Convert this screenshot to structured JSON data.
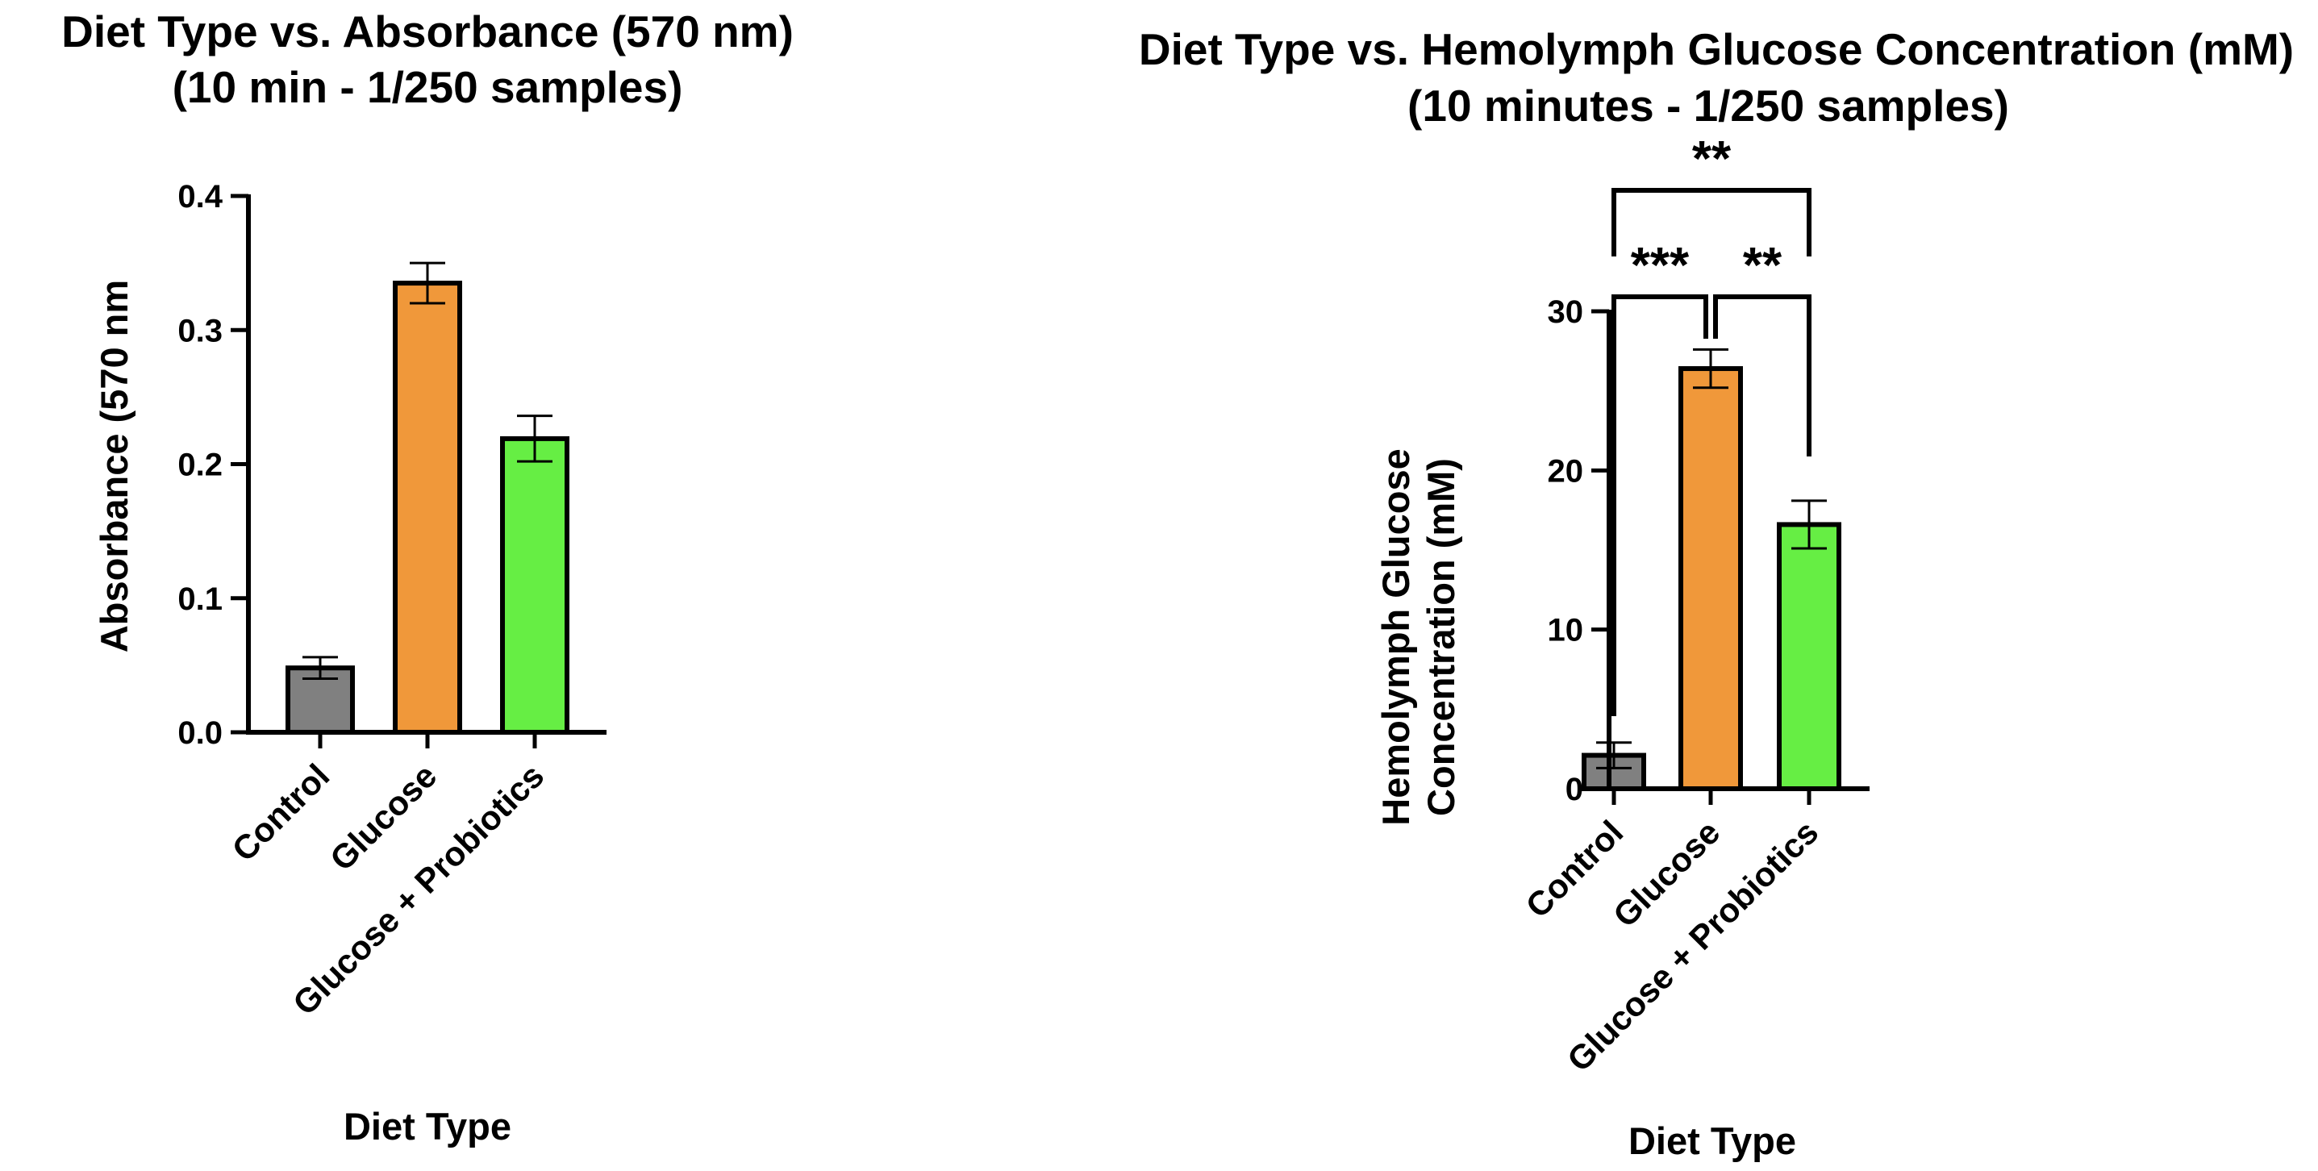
{
  "chart_data": [
    {
      "type": "bar",
      "title_line1": "Diet Type vs. Absorbance (570 nm)",
      "title_line2": "(10 min - 1/250 samples)",
      "xlabel": "Diet Type",
      "ylabel": "Absorbance (570 nm",
      "categories": [
        "Control",
        "Glucose",
        "Glucose + Probiotics"
      ],
      "values": [
        0.048,
        0.335,
        0.219
      ],
      "errors": [
        0.008,
        0.015,
        0.017
      ],
      "colors": [
        "#808080",
        "#F0983A",
        "#66EE44"
      ],
      "ylim": [
        0,
        0.4
      ],
      "yticks": [
        "0.0",
        "0.1",
        "0.2",
        "0.3",
        "0.4"
      ],
      "significance": [],
      "grid": false,
      "legend": "none"
    },
    {
      "type": "bar",
      "title_line1": "Diet Type vs. Hemolymph Glucose Concentration (mM)",
      "title_line2": "(10 minutes - 1/250 samples)",
      "xlabel": "Diet Type",
      "ylabel_line1": "Hemolymph Glucose",
      "ylabel_line2": "Concentration (mM)",
      "categories": [
        "Control",
        "Glucose",
        "Glucose + Probiotics"
      ],
      "values": [
        2.1,
        26.4,
        16.6
      ],
      "errors": [
        0.8,
        1.2,
        1.5
      ],
      "colors": [
        "#808080",
        "#F0983A",
        "#66EE44"
      ],
      "ylim": [
        0,
        30
      ],
      "yticks": [
        "0",
        "10",
        "20",
        "30"
      ],
      "significance": [
        {
          "from": 0,
          "to": 1,
          "label": "***"
        },
        {
          "from": 1,
          "to": 2,
          "label": "**"
        },
        {
          "from": 0,
          "to": 2,
          "label": "**"
        }
      ],
      "grid": false,
      "legend": "none"
    }
  ]
}
